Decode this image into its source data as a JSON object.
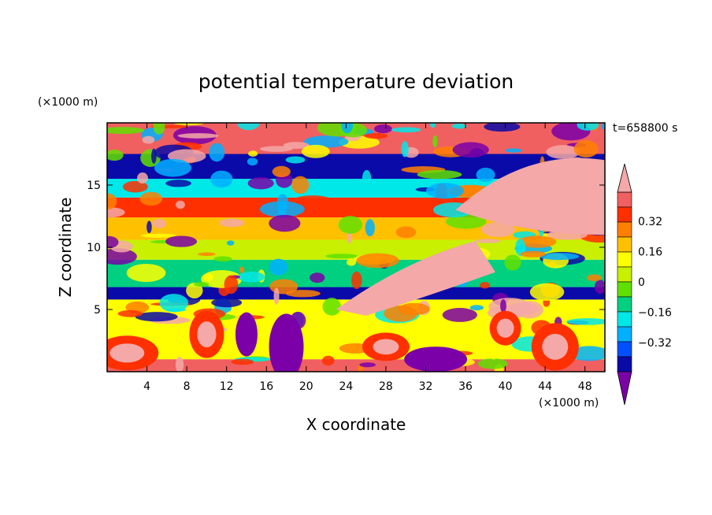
{
  "chart_data": {
    "type": "heatmap",
    "title": "potential temperature deviation",
    "xlabel": "X coordinate",
    "ylabel": "Z coordinate",
    "x_unit": "(×1000 m)",
    "y_unit": "(×1000 m)",
    "time_label": "t=658800 s",
    "xlim": [
      0,
      50
    ],
    "ylim": [
      0,
      20
    ],
    "x_ticks": [
      4,
      8,
      12,
      16,
      20,
      24,
      28,
      32,
      36,
      40,
      44,
      48
    ],
    "y_ticks": [
      5,
      10,
      15
    ],
    "grid": false,
    "colorbar": {
      "placement": "right",
      "levels": [
        -0.4,
        -0.32,
        -0.24,
        -0.16,
        -0.08,
        0,
        0.08,
        0.16,
        0.24,
        0.32,
        0.4
      ],
      "colors": [
        "#7b00a8",
        "#2a1bc0",
        "#0a0aa8",
        "#0050ff",
        "#00b0ff",
        "#00e8e8",
        "#00d080",
        "#60e000",
        "#c8f000",
        "#ffff00",
        "#ffc000",
        "#ff8000",
        "#ff3000",
        "#f06060",
        "#f4a8a8"
      ],
      "labels": [
        "0.32",
        "0.16",
        "0",
        "−0.16",
        "−0.32"
      ],
      "label_values": [
        0.32,
        0.16,
        0,
        -0.16,
        -0.32
      ],
      "extend": "both"
    },
    "layers": [
      {
        "z": [
          0,
          1.0
        ],
        "value": 0.45
      },
      {
        "z": [
          1.0,
          5.8
        ],
        "value": 0.15
      },
      {
        "z": [
          5.8,
          6.8
        ],
        "value": -0.45
      },
      {
        "z": [
          6.8,
          9.0
        ],
        "value": -0.08
      },
      {
        "z": [
          9.0,
          10.6
        ],
        "value": 0.04
      },
      {
        "z": [
          10.6,
          12.4
        ],
        "value": 0.2
      },
      {
        "z": [
          12.4,
          14.0
        ],
        "value": 0.33
      },
      {
        "z": [
          14.0,
          15.5
        ],
        "value": -0.2
      },
      {
        "z": [
          15.5,
          17.5
        ],
        "value": -0.45
      },
      {
        "z": [
          17.5,
          20.0
        ],
        "value": 0.45
      }
    ]
  }
}
